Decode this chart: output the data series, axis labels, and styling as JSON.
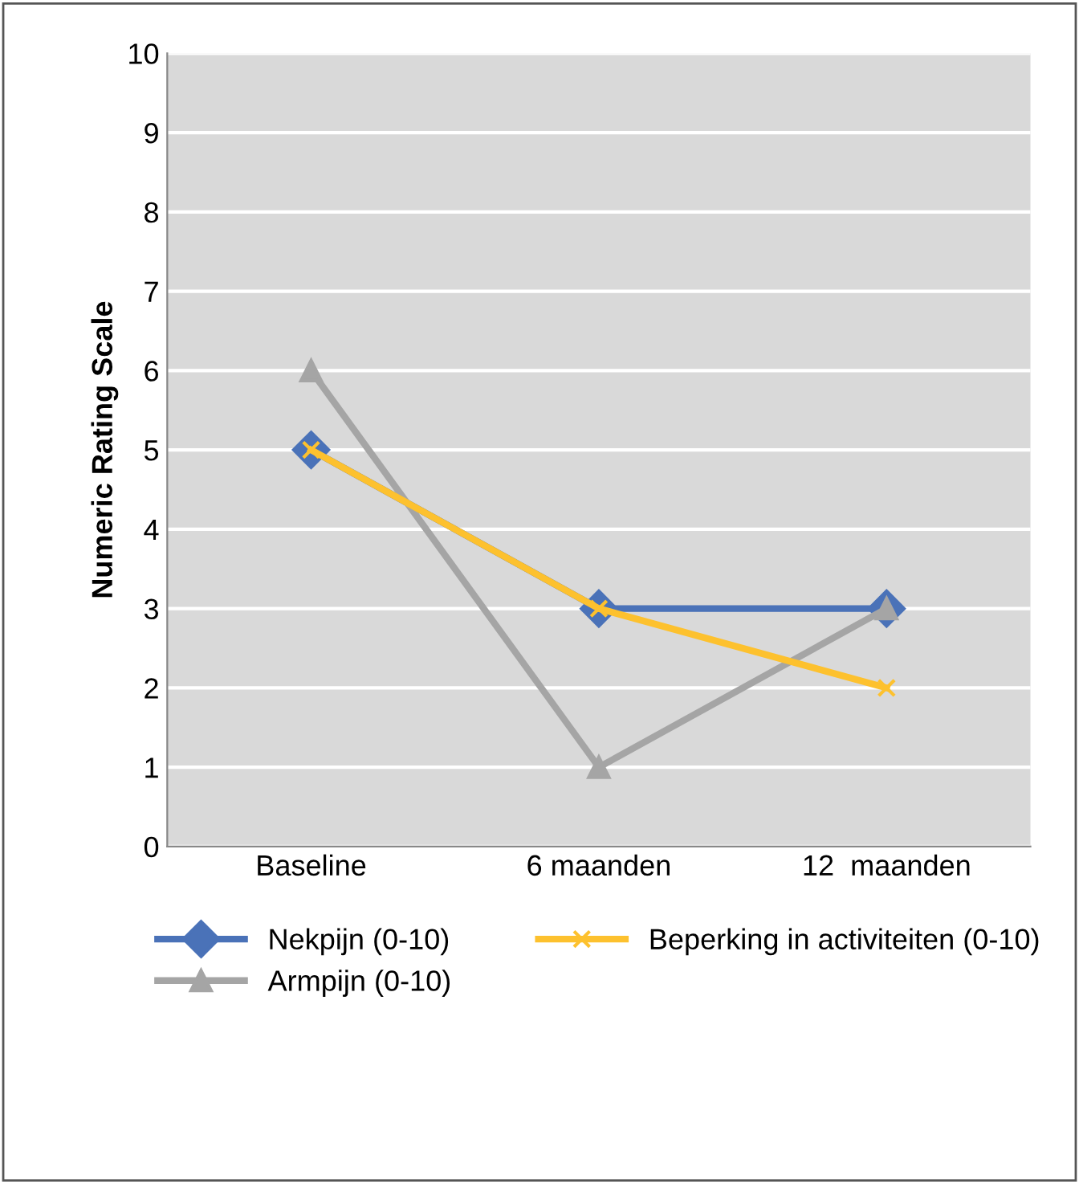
{
  "chart_data": {
    "type": "line",
    "ylabel": "Numeric Rating Scale",
    "categories": [
      "Baseline",
      "6 maanden",
      "12  maanden"
    ],
    "series": [
      {
        "name": "Nekpijn (0-10)",
        "color": "#4a72b8",
        "values": [
          5,
          3,
          3
        ],
        "marker": "diamond"
      },
      {
        "name": "Armpijn (0-10)",
        "color": "#a5a5a5",
        "values": [
          6,
          1,
          3
        ],
        "marker": "triangle"
      },
      {
        "name": "Beperking in activiteiten (0-10)",
        "color": "#fdc12e",
        "values": [
          5,
          3,
          2
        ],
        "marker": "cross"
      }
    ],
    "ylim": [
      0,
      10
    ],
    "yticks": [
      0,
      1,
      2,
      3,
      4,
      5,
      6,
      7,
      8,
      9,
      10
    ],
    "grid": "y",
    "legend": "bottom"
  }
}
